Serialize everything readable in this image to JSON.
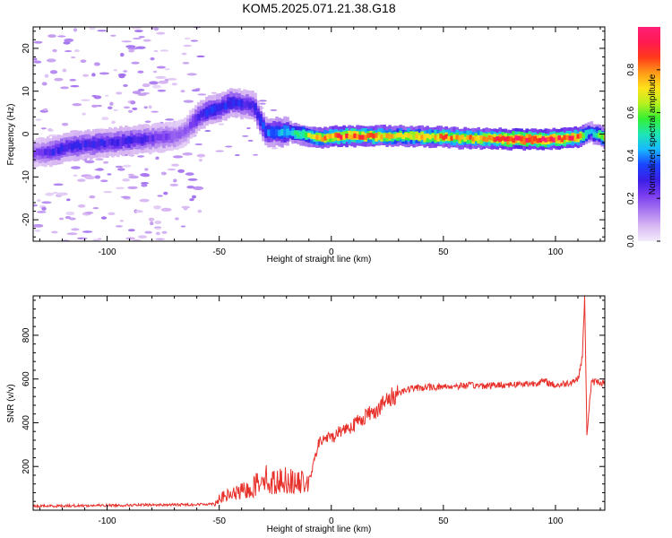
{
  "title": "KOM5.2025.071.21.38.G18",
  "colorbar": {
    "label": "Normalized spectral amplitude",
    "ticks": [
      "0.0",
      "0.2",
      "0.4",
      "0.6",
      "0.8"
    ],
    "tick_values": [
      0.0,
      0.2,
      0.4,
      0.6,
      0.8
    ],
    "range": [
      0,
      1
    ],
    "stops": [
      "#f2ecfb",
      "#d9b8f2",
      "#a878f0",
      "#7a3cf0",
      "#3a1ee6",
      "#1a44ff",
      "#18b8ff",
      "#1fe6b4",
      "#33f033",
      "#b8f020",
      "#ffe21a",
      "#ff9a18",
      "#ff3a1a",
      "#ff1a50",
      "#ff1f78"
    ]
  },
  "chart_data": [
    {
      "type": "heatmap",
      "panel": "spectrogram",
      "xlabel": "Height of straight line (km)",
      "ylabel": "Frequency (Hz)",
      "xlim": [
        -133,
        122
      ],
      "ylim": [
        -25,
        25
      ],
      "xticks": [
        -100,
        -50,
        0,
        50,
        100
      ],
      "xtick_labels": [
        "-100",
        "-50",
        "0",
        "50",
        "100"
      ],
      "yticks": [
        -20,
        -10,
        0,
        10,
        20
      ],
      "ytick_labels": [
        "-20",
        "-10",
        "0",
        "10",
        "20"
      ],
      "ridge": {
        "x": [
          -133,
          -125,
          -118,
          -110,
          -100,
          -90,
          -80,
          -70,
          -65,
          -60,
          -55,
          -50,
          -45,
          -40,
          -35,
          -30,
          -25,
          -20,
          -15,
          -10,
          -5,
          0,
          10,
          20,
          30,
          40,
          50,
          60,
          70,
          80,
          90,
          100,
          110,
          115,
          122
        ],
        "freq": [
          -4.5,
          -4.0,
          -3.0,
          -2.5,
          -2.0,
          -1.5,
          -1.0,
          -0.5,
          1.0,
          4.0,
          5.5,
          6.0,
          7.5,
          7.0,
          6.5,
          0.5,
          0.5,
          0.5,
          0.0,
          -0.5,
          -1.0,
          -0.5,
          -0.5,
          -0.5,
          -0.5,
          -0.6,
          -0.8,
          -1.0,
          -1.0,
          -1.2,
          -1.3,
          -1.2,
          -0.8,
          0.5,
          -1.0
        ],
        "amplitude": [
          0.2,
          0.3,
          0.3,
          0.3,
          0.3,
          0.3,
          0.25,
          0.2,
          0.2,
          0.3,
          0.35,
          0.35,
          0.35,
          0.3,
          0.3,
          0.4,
          0.45,
          0.5,
          0.6,
          0.7,
          0.8,
          0.9,
          0.9,
          0.85,
          0.7,
          0.8,
          0.85,
          0.8,
          0.9,
          1.0,
          1.0,
          0.95,
          0.9,
          0.4,
          0.8
        ]
      }
    },
    {
      "type": "line",
      "panel": "snr",
      "xlabel": "Height of straight line (km)",
      "ylabel": "SNR (v/v)",
      "xlim": [
        -133,
        122
      ],
      "ylim": [
        0,
        980
      ],
      "xticks": [
        -100,
        -50,
        0,
        50,
        100
      ],
      "xtick_labels": [
        "-100",
        "-50",
        "0",
        "50",
        "100"
      ],
      "yticks": [
        200,
        400,
        600,
        800
      ],
      "ytick_labels": [
        "200",
        "400",
        "600",
        "800"
      ],
      "color": "#e8302a",
      "series": [
        {
          "x": [
            -133,
            -120,
            -100,
            -80,
            -60,
            -52,
            -50,
            -45,
            -40,
            -35,
            -32,
            -30,
            -28,
            -25,
            -20,
            -15,
            -10,
            -9,
            -6,
            -3,
            0,
            5,
            10,
            15,
            20,
            25,
            30,
            35,
            40,
            50,
            60,
            70,
            80,
            90,
            95,
            100,
            105,
            110,
            112,
            113,
            114,
            116,
            118,
            122
          ],
          "y": [
            18,
            20,
            22,
            24,
            26,
            30,
            55,
            70,
            85,
            100,
            140,
            170,
            120,
            130,
            140,
            120,
            140,
            160,
            300,
            330,
            330,
            370,
            390,
            430,
            460,
            500,
            540,
            555,
            560,
            565,
            570,
            570,
            575,
            580,
            590,
            570,
            580,
            600,
            700,
            980,
            350,
            580,
            590,
            580
          ]
        }
      ]
    }
  ]
}
